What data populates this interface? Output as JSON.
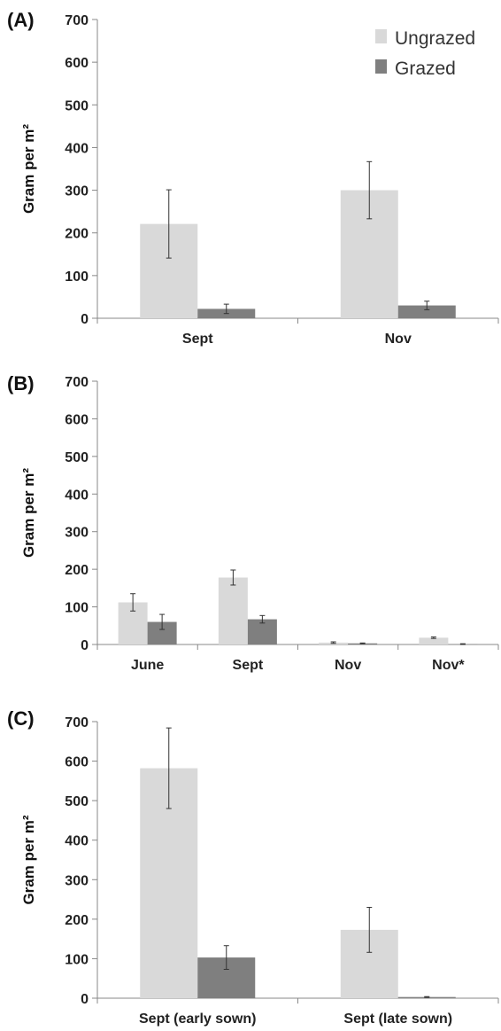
{
  "legend": {
    "placement": "top-right",
    "items": [
      {
        "label": "Ungrazed",
        "color": "#d9d9d9"
      },
      {
        "label": "Grazed",
        "color": "#7f7f7f"
      }
    ]
  },
  "chart_data": [
    {
      "type": "bar",
      "panel_label": "(A)",
      "ylabel": "Gram per m²",
      "ylim": [
        0,
        700
      ],
      "yticks": [
        0,
        100,
        200,
        300,
        400,
        500,
        600,
        700
      ],
      "categories": [
        "Sept",
        "Nov"
      ],
      "series": [
        {
          "name": "Ungrazed",
          "color": "#d9d9d9",
          "values": [
            221,
            300
          ],
          "errors": [
            80,
            67
          ]
        },
        {
          "name": "Grazed",
          "color": "#7f7f7f",
          "values": [
            22,
            30
          ],
          "errors": [
            11,
            10
          ]
        }
      ],
      "grid": false
    },
    {
      "type": "bar",
      "panel_label": "(B)",
      "ylabel": "Gram per m²",
      "ylim": [
        0,
        700
      ],
      "yticks": [
        0,
        100,
        200,
        300,
        400,
        500,
        600,
        700
      ],
      "categories": [
        "June",
        "Sept",
        "Nov",
        "Nov*"
      ],
      "series": [
        {
          "name": "Ungrazed",
          "color": "#d9d9d9",
          "values": [
            112,
            178,
            5,
            18
          ],
          "errors": [
            23,
            20,
            2,
            2
          ]
        },
        {
          "name": "Grazed",
          "color": "#7f7f7f",
          "values": [
            60,
            67,
            3,
            1
          ],
          "errors": [
            20,
            10,
            1,
            1
          ]
        }
      ],
      "grid": false
    },
    {
      "type": "bar",
      "panel_label": "(C)",
      "ylabel": "Gram per m²",
      "ylim": [
        0,
        700
      ],
      "yticks": [
        0,
        100,
        200,
        300,
        400,
        500,
        600,
        700
      ],
      "categories": [
        "Sept (early sown)",
        "Sept (late sown)"
      ],
      "series": [
        {
          "name": "Ungrazed",
          "color": "#d9d9d9",
          "values": [
            582,
            173
          ],
          "errors": [
            102,
            57
          ]
        },
        {
          "name": "Grazed",
          "color": "#7f7f7f",
          "values": [
            103,
            3
          ],
          "errors": [
            30,
            1
          ]
        }
      ],
      "grid": false
    }
  ]
}
